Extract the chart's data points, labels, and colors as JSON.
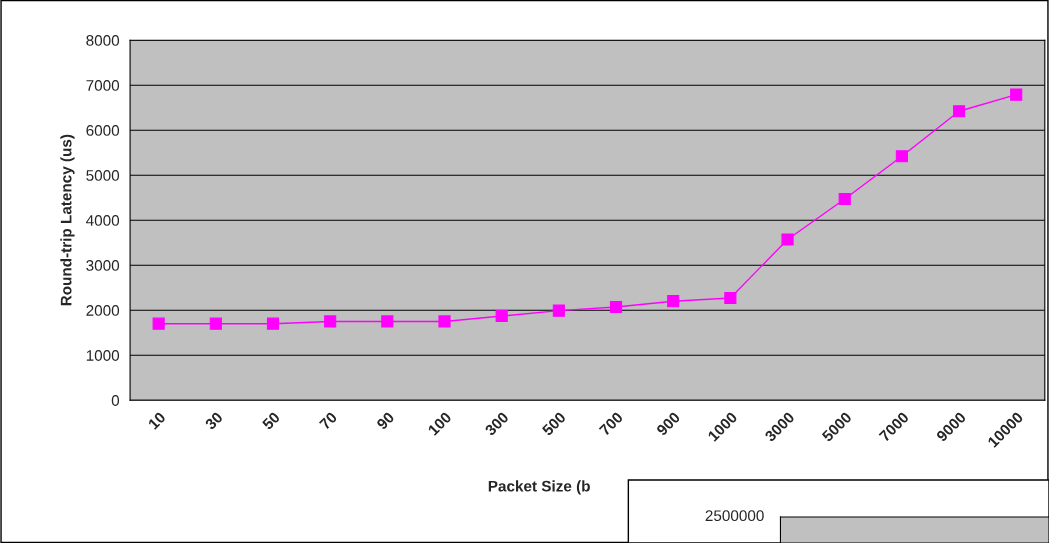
{
  "chart_data": [
    {
      "type": "line",
      "categories": [
        "10",
        "30",
        "50",
        "70",
        "90",
        "100",
        "300",
        "500",
        "700",
        "900",
        "1000",
        "3000",
        "5000",
        "7000",
        "9000",
        "10000"
      ],
      "series": [
        {
          "color": "#ff00ff",
          "values": [
            1700,
            1700,
            1700,
            1750,
            1750,
            1750,
            1870,
            1990,
            2070,
            2200,
            2270,
            3570,
            4470,
            5420,
            6420,
            6790
          ]
        }
      ],
      "ylim": [
        0,
        8000
      ],
      "yticks": [
        0,
        1000,
        2000,
        3000,
        4000,
        5000,
        6000,
        7000,
        8000
      ],
      "grid": "y",
      "marker": "square",
      "line_style": "solid",
      "xlabel": "Packet Size (b",
      "ylabel": "Round-trip Latency (us)"
    },
    {
      "type": "other",
      "annotations": [
        "2500000"
      ]
    }
  ]
}
